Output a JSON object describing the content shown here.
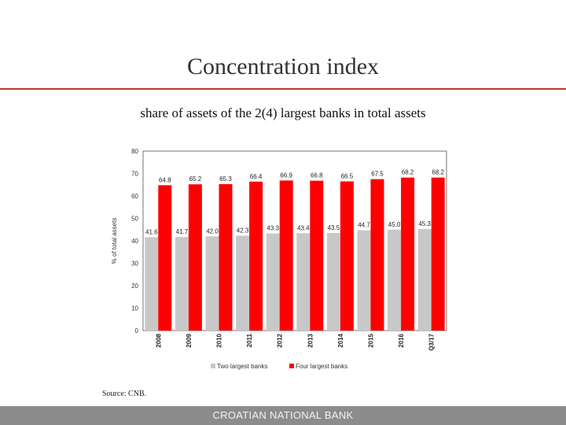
{
  "slide": {
    "title": "Concentration index",
    "subtitle": "share of assets of the 2(4) largest banks in total assets",
    "source": "Source: CNB.",
    "footer": "CROATIAN NATIONAL BANK"
  },
  "colors": {
    "two_largest": "#c8c8c8",
    "four_largest": "#ff0000",
    "title_rule": "#c0392b",
    "footer_bar": "#8c8c8c"
  },
  "chart_data": {
    "type": "bar",
    "title": "",
    "xlabel": "",
    "ylabel": "% of total assets",
    "ylim": [
      0,
      80
    ],
    "yticks": [
      0,
      10,
      20,
      30,
      40,
      50,
      60,
      70,
      80
    ],
    "categories": [
      "2008",
      "2009",
      "2010",
      "2011",
      "2012",
      "2013",
      "2014",
      "2015",
      "2016",
      "Q3/17"
    ],
    "series": [
      {
        "name": "Two largest banks",
        "values": [
          41.6,
          41.7,
          42.0,
          42.3,
          43.3,
          43.4,
          43.5,
          44.7,
          45.0,
          45.3
        ]
      },
      {
        "name": "Four largest banks",
        "values": [
          64.8,
          65.2,
          65.3,
          66.4,
          66.9,
          66.8,
          66.5,
          67.5,
          68.2,
          68.2
        ]
      }
    ],
    "legend_position": "bottom",
    "grid": false
  }
}
